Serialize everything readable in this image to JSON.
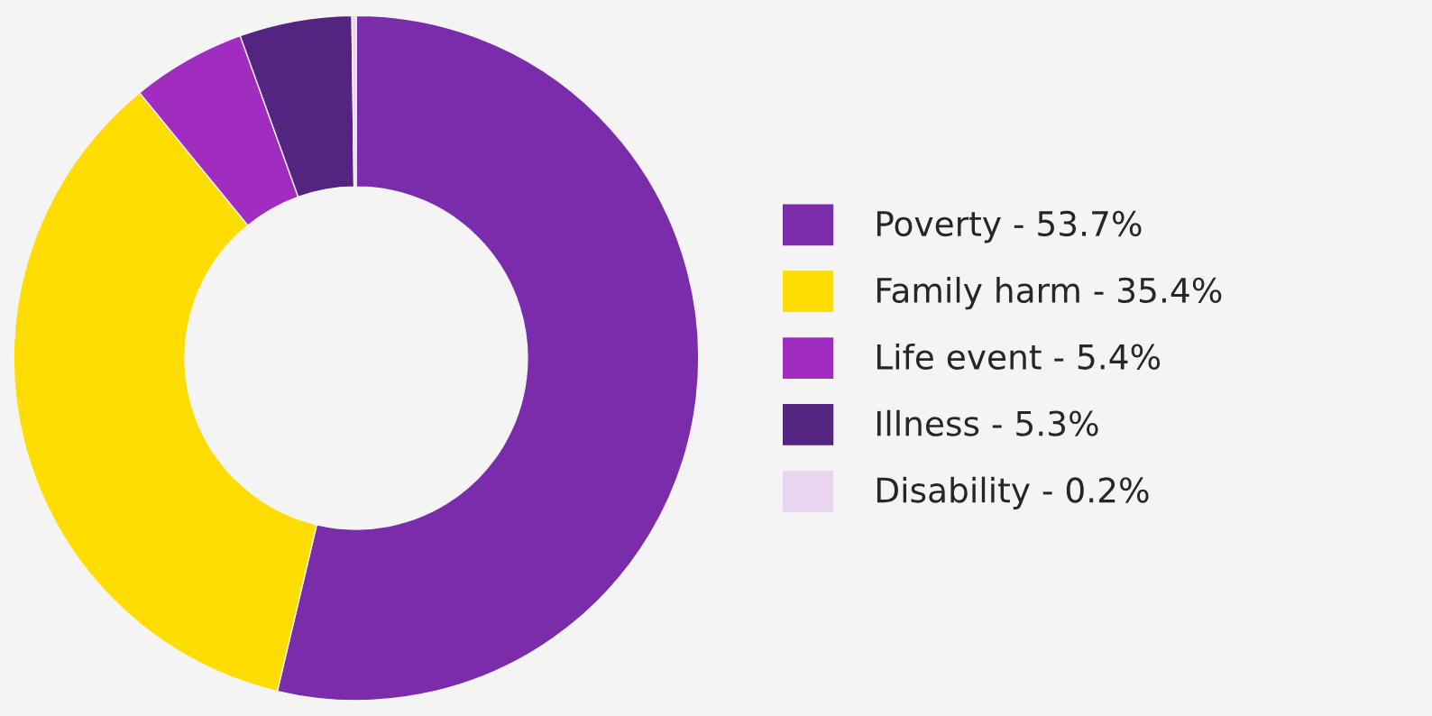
{
  "chart_data": {
    "type": "donut",
    "categories": [
      "Poverty - 53.7%",
      "Family harm - 35.4%",
      "Life event - 5.4%",
      "Illness - 5.3%",
      "Disability - 0.2%"
    ],
    "values": [
      53.7,
      35.4,
      5.4,
      5.3,
      0.2
    ],
    "colors": [
      "#7b2cab",
      "#ffdd00",
      "#a02cc0",
      "#532580",
      "#ead5f0"
    ],
    "legend": "right"
  }
}
